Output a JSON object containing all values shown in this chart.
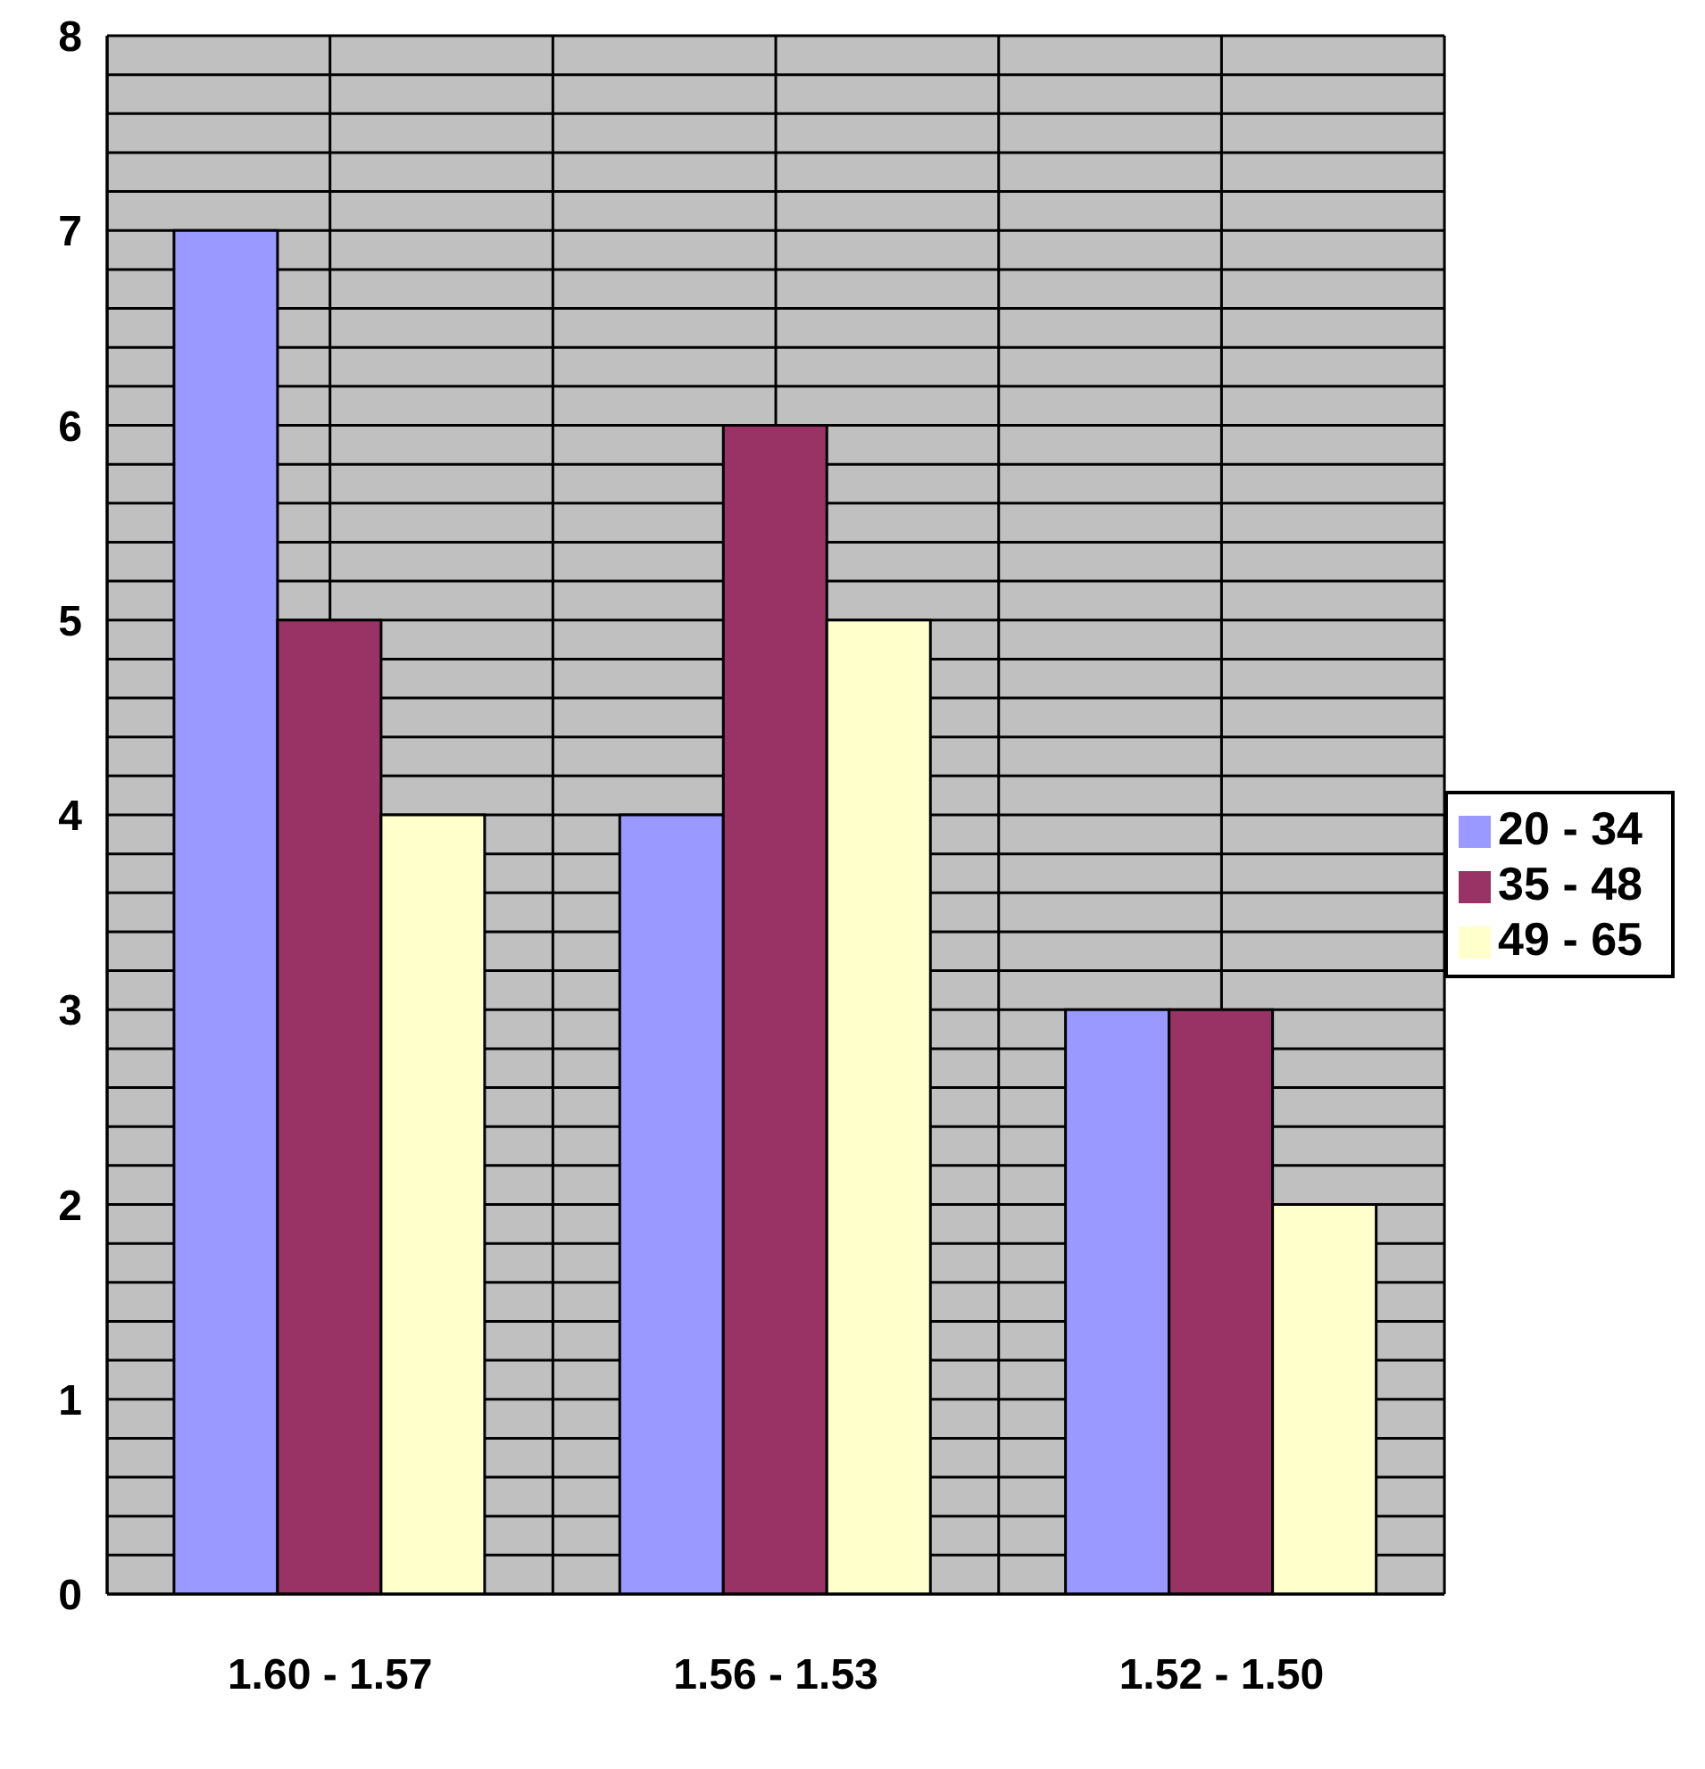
{
  "chart_data": {
    "type": "bar",
    "categories": [
      "1.60 - 1.57",
      "1.56 - 1.53",
      "1.52 - 1.50"
    ],
    "series": [
      {
        "name": "20 - 34",
        "color": "#9999ff",
        "values": [
          7,
          4,
          3
        ]
      },
      {
        "name": "35 - 48",
        "color": "#993366",
        "values": [
          5,
          6,
          3
        ]
      },
      {
        "name": "49 - 65",
        "color": "#ffffcc",
        "values": [
          4,
          5,
          2
        ]
      }
    ],
    "ylim": [
      0,
      8
    ],
    "yticks": [
      0,
      {
        "value": 0.2,
        "label": null
      },
      {
        "value": 0.4,
        "label": null
      },
      {
        "value": 0.6,
        "label": null
      },
      {
        "value": 0.8,
        "label": null
      },
      1,
      {
        "value": 1.2,
        "label": null
      },
      {
        "value": 1.4,
        "label": null
      },
      {
        "value": 1.6,
        "label": null
      },
      {
        "value": 1.8,
        "label": null
      },
      2,
      {
        "value": 2.2,
        "label": null
      },
      {
        "value": 2.4,
        "label": null
      },
      {
        "value": 2.6,
        "label": null
      },
      {
        "value": 2.8,
        "label": null
      },
      3,
      {
        "value": 3.2,
        "label": null
      },
      {
        "value": 3.4,
        "label": null
      },
      {
        "value": 3.6,
        "label": null
      },
      {
        "value": 3.8,
        "label": null
      },
      4,
      {
        "value": 4.2,
        "label": null
      },
      {
        "value": 4.4,
        "label": null
      },
      {
        "value": 4.6,
        "label": null
      },
      {
        "value": 4.8,
        "label": null
      },
      5,
      {
        "value": 5.2,
        "label": null
      },
      {
        "value": 5.4,
        "label": null
      },
      {
        "value": 5.6,
        "label": null
      },
      {
        "value": 5.8,
        "label": null
      },
      6,
      {
        "value": 6.2,
        "label": null
      },
      {
        "value": 6.4,
        "label": null
      },
      {
        "value": 6.6,
        "label": null
      },
      {
        "value": 6.8,
        "label": null
      },
      7,
      {
        "value": 7.2,
        "label": null
      },
      {
        "value": 7.4,
        "label": null
      },
      {
        "value": 7.6,
        "label": null
      },
      {
        "value": 7.8,
        "label": null
      },
      8
    ],
    "grid": true,
    "legend": "right"
  }
}
